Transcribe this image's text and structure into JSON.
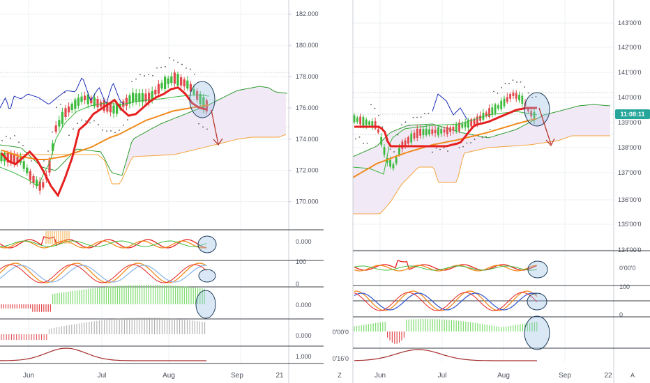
{
  "chart_data": [
    {
      "type": "line",
      "panel": "left",
      "x_ticks": [
        "Jun",
        "Jul",
        "Aug",
        "Sep",
        "21"
      ],
      "y_ticks": [
        "182.000",
        "180.000",
        "178.000",
        "176.000",
        "174.000",
        "172.000",
        "170.000"
      ],
      "ylim": [
        168.2,
        182.9
      ],
      "indicator_labels": [
        "0.000",
        "100",
        "0",
        "0.000",
        "0.000",
        "1.000"
      ],
      "series": [
        {
          "values": [
            173.1,
            172.6,
            172.4,
            172.8,
            173.2,
            172.7,
            171.9,
            171.0,
            170.4,
            171.5,
            172.8,
            174.6,
            175.0,
            175.6,
            175.9,
            176.2,
            176.5,
            175.9,
            175.5,
            175.6,
            176.0,
            176.4,
            176.7,
            176.9,
            177.2,
            177.3,
            176.9,
            176.3,
            176.0,
            175.9
          ]
        },
        {
          "values": [
            172.5,
            172.5,
            172.2,
            172.2,
            172.6,
            172.6,
            172.6,
            172.3,
            172.3,
            172.3,
            173.8,
            175.3,
            175.3,
            175.3,
            175.3,
            175.6,
            175.6,
            175.6,
            175.6,
            175.6,
            175.6,
            175.6,
            175.6,
            175.6,
            175.6,
            175.6,
            175.6,
            175.6,
            175.6,
            175.6
          ]
        },
        {
          "values": [
            173.3,
            173.1,
            172.9,
            172.8,
            172.7,
            172.7,
            172.8,
            172.9,
            173.1,
            173.3,
            173.5,
            173.8,
            174.1,
            174.3,
            174.6,
            174.9,
            175.2,
            175.4,
            175.6,
            175.8,
            175.9,
            176.0,
            176.1,
            176.2
          ]
        },
        {
          "values": [
            172.8,
            172.8,
            172.6,
            172.6,
            172.6,
            172.6,
            172.6,
            172.6,
            173.4,
            174.8,
            175.1,
            175.1,
            175.5,
            175.7,
            175.7,
            175.7,
            176.1,
            176.1,
            176.2,
            176.2,
            176.4,
            176.6,
            176.9,
            176.9
          ]
        }
      ]
    },
    {
      "type": "line",
      "panel": "right",
      "x_ticks": [
        "Jun",
        "Jul",
        "Aug",
        "Sep",
        "22"
      ],
      "y_ticks": [
        "143'00'0",
        "142'00'0",
        "141'00'0",
        "140'00'0",
        "139'00'0",
        "138'00'0",
        "137'00'0",
        "136'00'0",
        "135'00'0",
        "134'00'0"
      ],
      "price_badge": "11:08:11",
      "indicator_labels": [
        "0'00'0",
        "100",
        "0",
        "0'00'0",
        "0'16'0"
      ],
      "corner_labels": [
        "Z",
        "A"
      ]
    }
  ],
  "colors": {
    "conversion_line": "#e5201f",
    "moving_average": "#f08a1c",
    "cloud_span_a": "#2e9c2e",
    "cloud_span_b": "#f4a43b",
    "lagging_span": "#1f2fb8",
    "cloud_fill": "#f1e9f6",
    "candle_up": "#3dbb3d",
    "candle_down": "#e2474b",
    "annotation": "#b83a2a",
    "price_badge": "#26a69a"
  }
}
